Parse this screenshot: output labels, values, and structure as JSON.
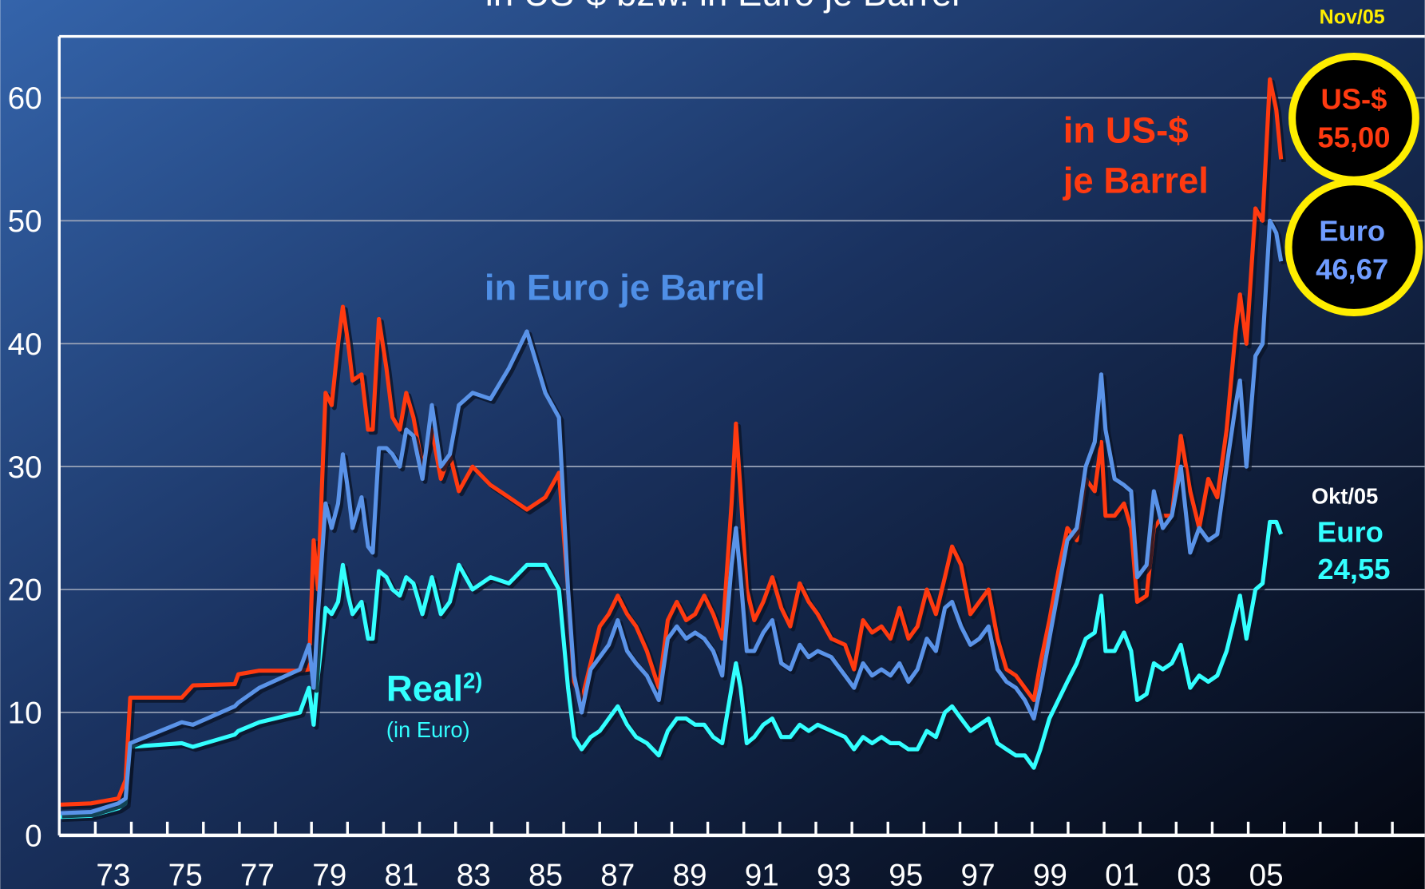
{
  "chart_data": {
    "type": "line",
    "title": "in US-$ bzw. in Euro je Barrel",
    "x": [
      1972.0,
      1972.88,
      1973.64,
      1973.84,
      1973.97,
      1975.4,
      1975.71,
      1976.87,
      1976.97,
      1977.55,
      1978.68,
      1978.93,
      1979.06,
      1979.18,
      1979.39,
      1979.56,
      1979.74,
      1979.87,
      1980.02,
      1980.14,
      1980.39,
      1980.57,
      1980.7,
      1980.87,
      1981.08,
      1981.25,
      1981.45,
      1981.63,
      1981.83,
      1982.08,
      1982.34,
      1982.59,
      1982.84,
      1983.09,
      1983.47,
      1983.97,
      1984.48,
      1984.98,
      1985.49,
      1985.87,
      1986.12,
      1986.29,
      1986.5,
      1986.75,
      1987.0,
      1987.25,
      1987.5,
      1987.76,
      1988.01,
      1988.31,
      1988.64,
      1988.89,
      1989.14,
      1989.4,
      1989.65,
      1989.9,
      1990.15,
      1990.4,
      1990.66,
      1990.78,
      1990.91,
      1991.08,
      1991.29,
      1991.54,
      1991.79,
      1992.04,
      1992.29,
      1992.55,
      1992.8,
      1993.05,
      1993.43,
      1993.81,
      1994.06,
      1994.31,
      1994.56,
      1994.82,
      1995.07,
      1995.32,
      1995.57,
      1995.82,
      1996.08,
      1996.33,
      1996.58,
      1996.78,
      1997.03,
      1997.29,
      1997.54,
      1997.79,
      1998.04,
      1998.29,
      1998.55,
      1998.8,
      1999.05,
      1999.23,
      1999.48,
      1999.73,
      1999.98,
      2000.24,
      2000.49,
      2000.74,
      2000.92,
      2001.04,
      2001.29,
      2001.55,
      2001.75,
      2001.92,
      2002.18,
      2002.38,
      2002.63,
      2002.88,
      2003.13,
      2003.39,
      2003.64,
      2003.89,
      2004.14,
      2004.4,
      2004.65,
      2004.77,
      2004.95,
      2005.2,
      2005.4,
      2005.6,
      2005.78,
      2005.91
    ],
    "series": [
      {
        "color": "#ff3a10",
        "values": [
          2.5,
          2.6,
          3,
          4.5,
          11.2,
          11.2,
          12.2,
          12.3,
          13.1,
          13.4,
          13.4,
          13.5,
          24,
          20,
          36,
          35,
          40,
          43,
          40,
          37,
          37.5,
          33,
          33,
          42,
          38,
          34,
          33,
          36,
          34,
          30,
          33,
          29,
          31,
          28,
          30,
          28.5,
          27.5,
          26.5,
          27.5,
          29.5,
          20,
          12.5,
          11,
          14,
          17,
          18,
          19.5,
          18,
          17,
          15,
          12,
          17.5,
          19,
          17.5,
          18,
          19.5,
          18,
          16,
          27,
          33.5,
          28,
          20,
          17.5,
          19,
          21,
          18.5,
          17,
          20.5,
          19,
          18,
          16,
          15.5,
          13.5,
          17.5,
          16.5,
          17,
          16,
          18.5,
          16,
          17,
          20,
          18,
          21,
          23.5,
          22,
          18,
          19,
          20,
          16,
          13.5,
          13,
          12,
          11,
          14,
          17.5,
          21.5,
          25,
          24,
          29,
          28,
          32,
          26,
          26,
          27,
          25,
          19,
          19.5,
          25,
          26,
          26,
          32.5,
          28,
          25,
          29,
          27.5,
          33,
          41,
          44,
          40,
          51,
          50,
          61.5,
          59,
          55
        ]
      },
      {
        "color": "#5a93e8",
        "values": [
          1.8,
          1.9,
          2.6,
          3,
          7.5,
          9.2,
          9,
          10.5,
          10.8,
          12,
          13.5,
          15.5,
          12,
          18,
          27,
          25,
          27,
          31,
          28,
          25,
          27.5,
          23.5,
          23,
          31.5,
          31.5,
          31,
          30,
          33,
          32.5,
          29,
          35,
          30,
          31,
          35,
          36,
          35.5,
          38,
          41,
          36,
          34,
          20,
          13,
          10,
          13.5,
          14.5,
          15.5,
          17.5,
          15,
          14,
          13,
          11,
          16,
          17,
          16,
          16.5,
          16,
          15,
          13,
          22,
          25,
          21,
          15,
          15,
          16.5,
          17.5,
          14,
          13.5,
          15.5,
          14.5,
          15,
          14.5,
          13,
          12,
          14,
          13,
          13.5,
          13,
          14,
          12.5,
          13.5,
          16,
          15,
          18.5,
          19,
          17,
          15.5,
          16,
          17,
          13.5,
          12.5,
          12,
          11,
          9.5,
          12,
          16,
          20,
          24,
          25,
          30,
          32,
          37.5,
          33,
          29,
          28.5,
          28,
          21,
          22,
          28,
          25,
          26,
          30,
          23,
          25,
          24,
          24.5,
          30,
          35,
          37,
          30,
          39,
          40,
          50,
          49,
          46.7
        ]
      },
      {
        "color": "#33ffff",
        "values": [
          1.5,
          1.6,
          2.2,
          2.6,
          7.2,
          7.5,
          7.2,
          8.2,
          8.5,
          9.2,
          10,
          12,
          9,
          13,
          18.5,
          18,
          19,
          22,
          19.5,
          18,
          19,
          16,
          16,
          21.5,
          21,
          20,
          19.5,
          21,
          20.5,
          18,
          21,
          18,
          19,
          22,
          20,
          21,
          20.5,
          22,
          22,
          20,
          12,
          8,
          7,
          8,
          8.5,
          9.5,
          10.5,
          9,
          8,
          7.5,
          6.5,
          8.5,
          9.5,
          9.5,
          9,
          9,
          8,
          7.5,
          12,
          14,
          12,
          7.5,
          8,
          9,
          9.5,
          8,
          8,
          9,
          8.5,
          9,
          8.5,
          8,
          7,
          8,
          7.5,
          8,
          7.5,
          7.5,
          7,
          7,
          8.5,
          8,
          10,
          10.5,
          9.5,
          8.5,
          9,
          9.5,
          7.5,
          7,
          6.5,
          6.5,
          5.5,
          7,
          9.5,
          11,
          12.5,
          14,
          16,
          16.5,
          19.5,
          15,
          15,
          16.5,
          15,
          11,
          11.5,
          14,
          13.5,
          14,
          15.5,
          12,
          13,
          12.5,
          13,
          15,
          18,
          19.5,
          16,
          20,
          20.5,
          25.5,
          25.5,
          24.5
        ]
      }
    ],
    "xlim": [
      1972,
      2009.9
    ],
    "ylim": [
      0,
      65
    ],
    "yticks": [
      0,
      10,
      20,
      30,
      40,
      50,
      60
    ],
    "xticks": [
      1973,
      1974,
      1975,
      1976,
      1977,
      1978,
      1979,
      1980,
      1981,
      1982,
      1983,
      1984,
      1985,
      1986,
      1987,
      1988,
      1989,
      1990,
      1991,
      1992,
      1993,
      1994,
      1995,
      1996,
      1997,
      1998,
      1999,
      2000,
      2001,
      2002,
      2003,
      2004,
      2005,
      2006,
      2007,
      2008,
      2009
    ],
    "xtick_labels": [
      {
        "value": 1973.5,
        "label": "73"
      },
      {
        "value": 1975.5,
        "label": "75"
      },
      {
        "value": 1977.5,
        "label": "77"
      },
      {
        "value": 1979.5,
        "label": "79"
      },
      {
        "value": 1981.5,
        "label": "81"
      },
      {
        "value": 1983.5,
        "label": "83"
      },
      {
        "value": 1985.5,
        "label": "85"
      },
      {
        "value": 1987.5,
        "label": "87"
      },
      {
        "value": 1989.5,
        "label": "89"
      },
      {
        "value": 1991.5,
        "label": "91"
      },
      {
        "value": 1993.5,
        "label": "93"
      },
      {
        "value": 1995.5,
        "label": "95"
      },
      {
        "value": 1997.5,
        "label": "97"
      },
      {
        "value": 1999.5,
        "label": "99"
      },
      {
        "value": 2001.5,
        "label": "01"
      },
      {
        "value": 2003.5,
        "label": "03"
      },
      {
        "value": 2005.5,
        "label": "05"
      }
    ],
    "grid": true,
    "annotations": {
      "usd_label": [
        "in US-$",
        "je Barrel"
      ],
      "euro_label": "in Euro je Barrel",
      "real_label": "Real",
      "real_note": "2)",
      "real_sub": "(in Euro)",
      "nov_date": "Nov/05",
      "usd_box": [
        "US-$",
        "55,00"
      ],
      "euro_box": [
        "Euro",
        "46,67"
      ],
      "okt_date": "Okt/05",
      "real_box": [
        "Euro",
        "24,55"
      ]
    }
  }
}
